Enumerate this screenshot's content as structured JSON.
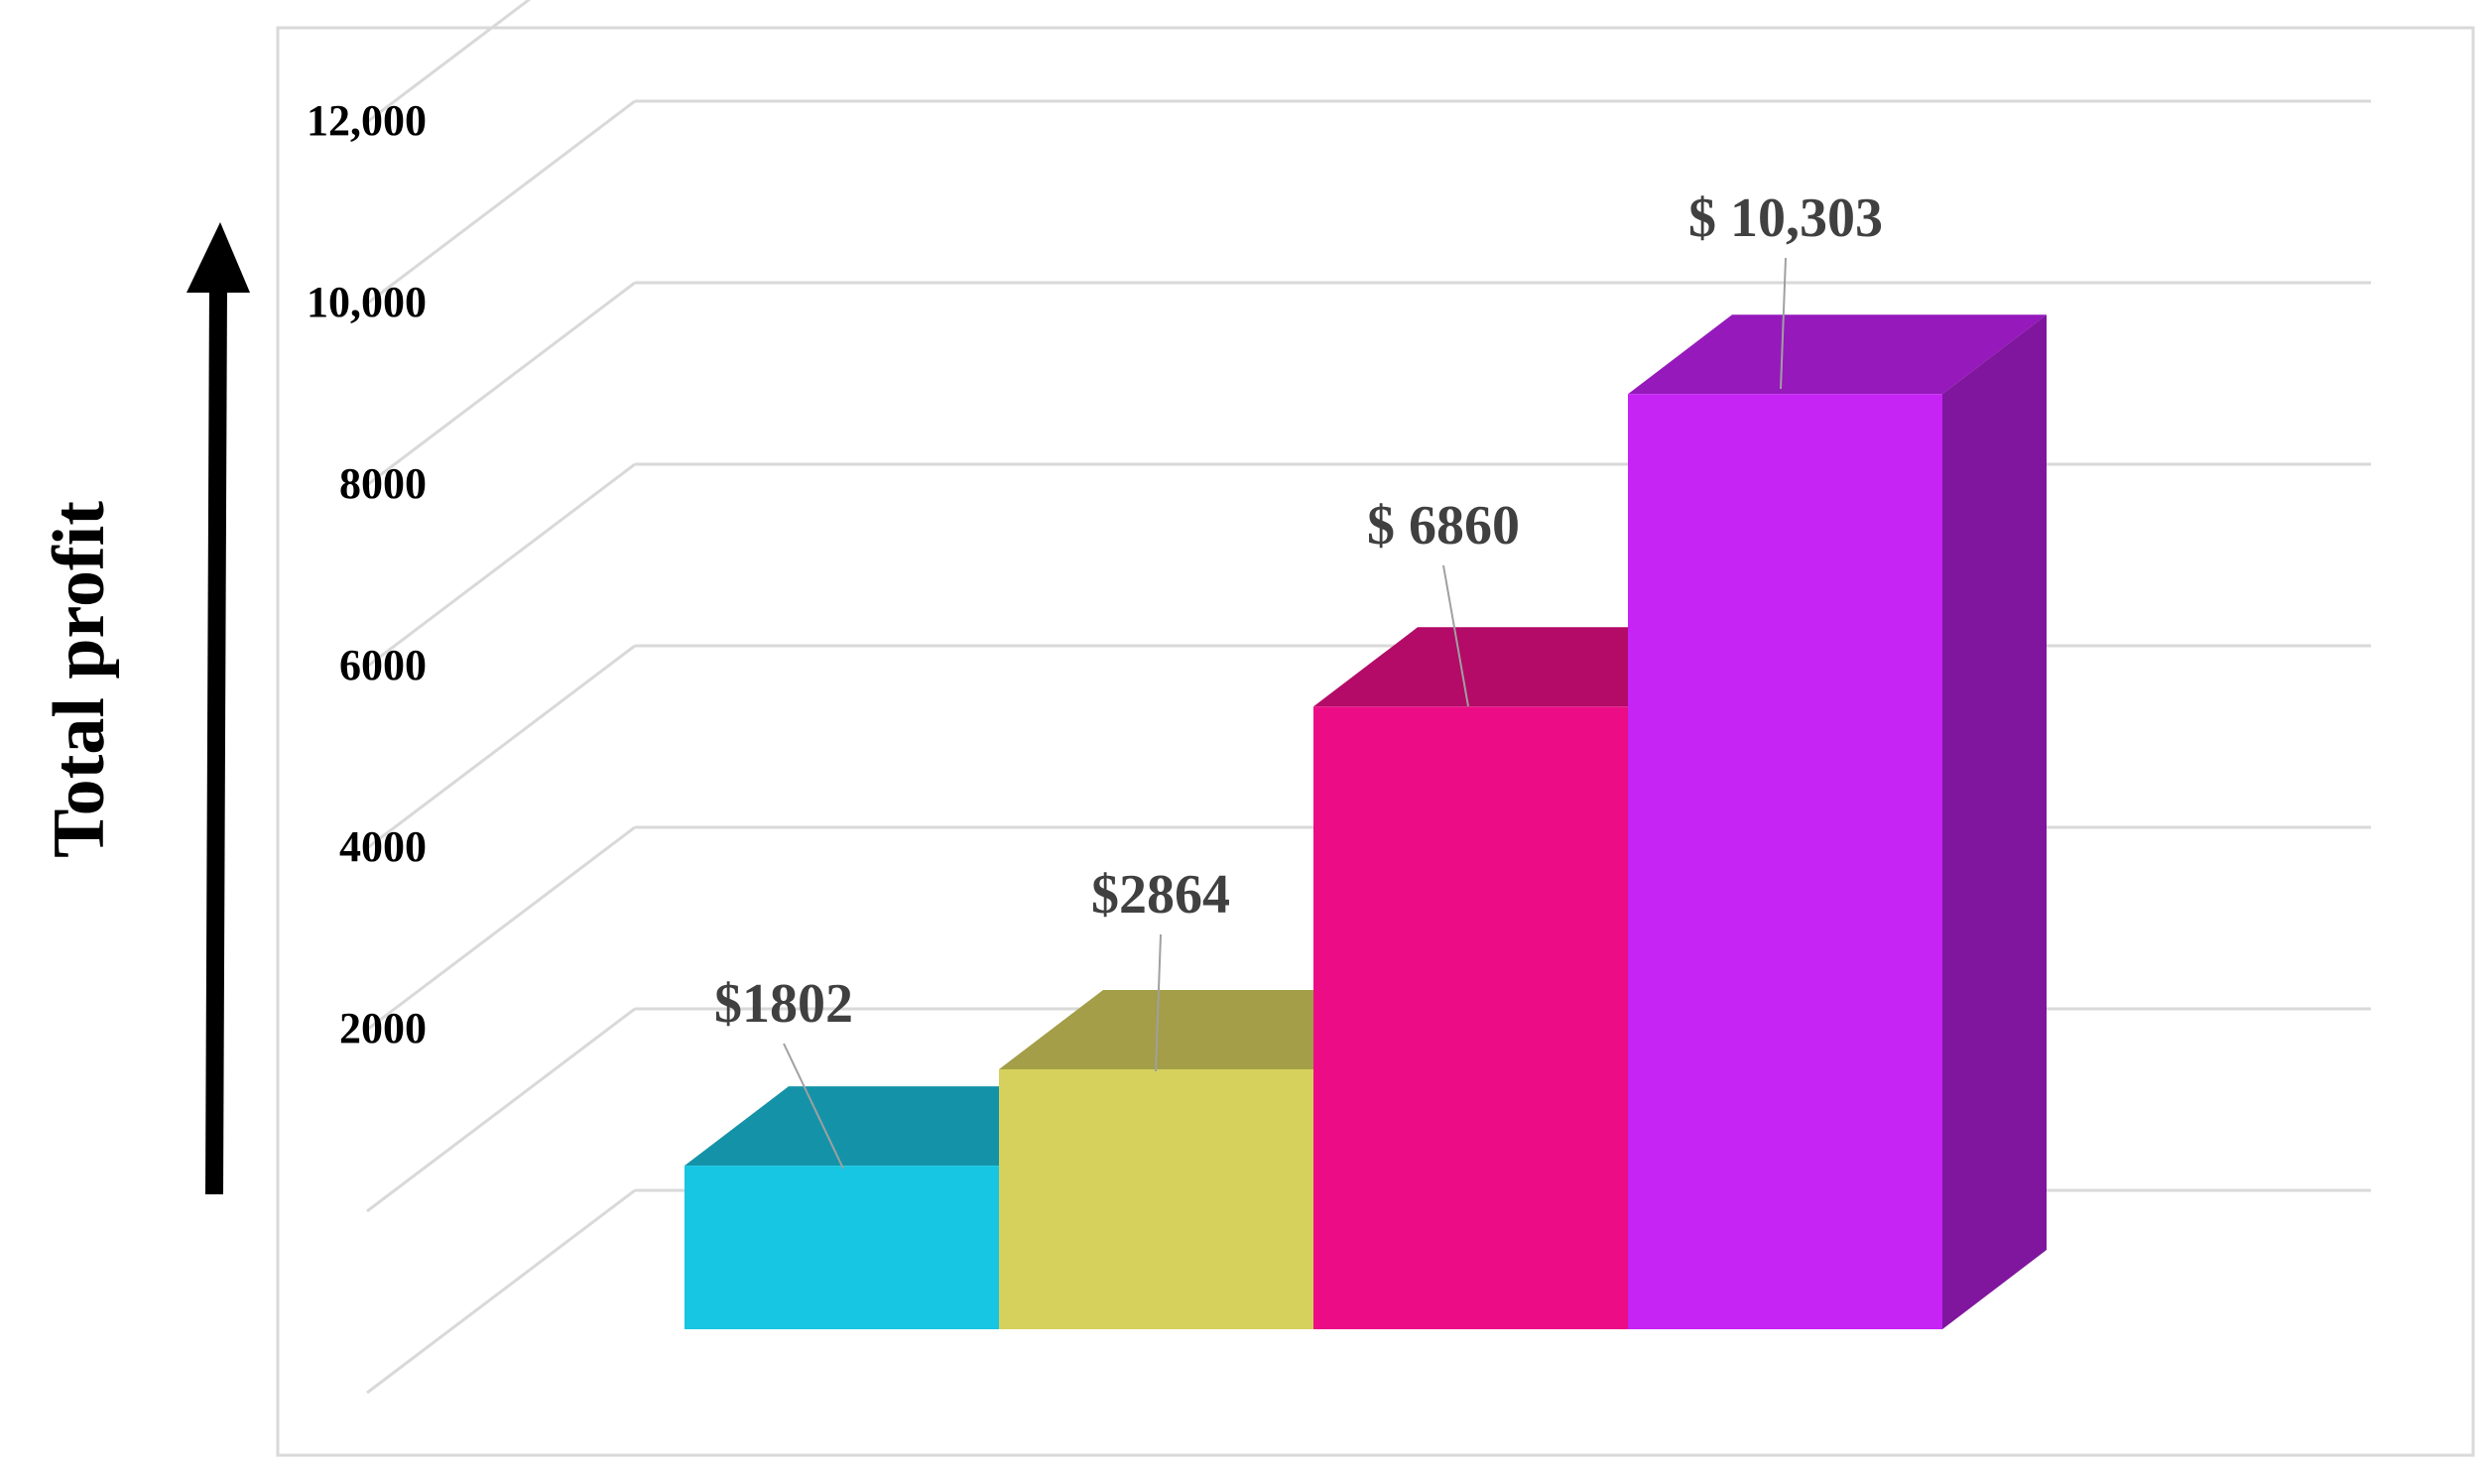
{
  "chart_data": {
    "type": "bar",
    "title": "",
    "xlabel": "",
    "ylabel": "Total profit",
    "ylim": [
      0,
      14000
    ],
    "yticks": [
      2000,
      4000,
      6000,
      8000,
      10000,
      12000
    ],
    "ytick_labels": [
      "2000",
      "4000",
      "6000",
      "8000",
      "10,000",
      "12,000"
    ],
    "grid": true,
    "three_d": true,
    "legend": "none",
    "categories": [
      "",
      "",
      "",
      ""
    ],
    "values": [
      1802,
      2864,
      6860,
      10303
    ],
    "data_labels": [
      "$1802",
      "$2864",
      "$ 6860",
      "$ 10,303"
    ],
    "colors": [
      {
        "front": "#16c6e2",
        "top": "#1493a8",
        "side": "#0f7a8c"
      },
      {
        "front": "#d6d15c",
        "top": "#a39e47",
        "side": "#8c8838"
      },
      {
        "front": "#ec0d86",
        "top": "#b30b67",
        "side": "#8f0852"
      },
      {
        "front": "#c623f5",
        "top": "#9619bb",
        "side": "#7f169d"
      }
    ]
  }
}
